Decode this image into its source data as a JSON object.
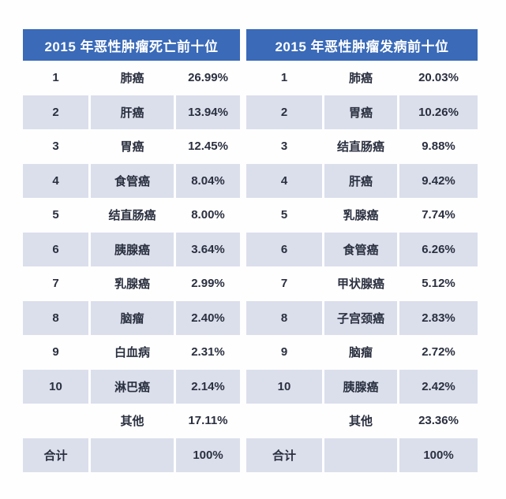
{
  "colors": {
    "header_bg": "#3a6ab8",
    "row_alt_bg": "#dbdfec",
    "text": "#2b3040"
  },
  "tables": {
    "left": {
      "title": "2015 年恶性肿瘤死亡前十位",
      "rows": [
        {
          "rank": "1",
          "name": "肺癌",
          "pct": "26.99%"
        },
        {
          "rank": "2",
          "name": "肝癌",
          "pct": "13.94%"
        },
        {
          "rank": "3",
          "name": "胃癌",
          "pct": "12.45%"
        },
        {
          "rank": "4",
          "name": "食管癌",
          "pct": "8.04%"
        },
        {
          "rank": "5",
          "name": "结直肠癌",
          "pct": "8.00%"
        },
        {
          "rank": "6",
          "name": "胰腺癌",
          "pct": "3.64%"
        },
        {
          "rank": "7",
          "name": "乳腺癌",
          "pct": "2.99%"
        },
        {
          "rank": "8",
          "name": "脑瘤",
          "pct": "2.40%"
        },
        {
          "rank": "9",
          "name": "白血病",
          "pct": "2.31%"
        },
        {
          "rank": "10",
          "name": "淋巴癌",
          "pct": "2.14%"
        },
        {
          "rank": "",
          "name": "其他",
          "pct": "17.11%"
        },
        {
          "rank": "合计",
          "name": "",
          "pct": "100%"
        }
      ]
    },
    "right": {
      "title": "2015 年恶性肿瘤发病前十位",
      "rows": [
        {
          "rank": "1",
          "name": "肺癌",
          "pct": "20.03%"
        },
        {
          "rank": "2",
          "name": "胃癌",
          "pct": "10.26%"
        },
        {
          "rank": "3",
          "name": "结直肠癌",
          "pct": "9.88%"
        },
        {
          "rank": "4",
          "name": "肝癌",
          "pct": "9.42%"
        },
        {
          "rank": "5",
          "name": "乳腺癌",
          "pct": "7.74%"
        },
        {
          "rank": "6",
          "name": "食管癌",
          "pct": "6.26%"
        },
        {
          "rank": "7",
          "name": "甲状腺癌",
          "pct": "5.12%"
        },
        {
          "rank": "8",
          "name": "子宫颈癌",
          "pct": "2.83%"
        },
        {
          "rank": "9",
          "name": "脑瘤",
          "pct": "2.72%"
        },
        {
          "rank": "10",
          "name": "胰腺癌",
          "pct": "2.42%"
        },
        {
          "rank": "",
          "name": "其他",
          "pct": "23.36%"
        },
        {
          "rank": "合计",
          "name": "",
          "pct": "100%"
        }
      ]
    }
  },
  "chart_data": [
    {
      "type": "table",
      "title": "2015 年恶性肿瘤死亡前十位",
      "rows": [
        [
          "1",
          "肺癌",
          "26.99%"
        ],
        [
          "2",
          "肝癌",
          "13.94%"
        ],
        [
          "3",
          "胃癌",
          "12.45%"
        ],
        [
          "4",
          "食管癌",
          "8.04%"
        ],
        [
          "5",
          "结直肠癌",
          "8.00%"
        ],
        [
          "6",
          "胰腺癌",
          "3.64%"
        ],
        [
          "7",
          "乳腺癌",
          "2.99%"
        ],
        [
          "8",
          "脑瘤",
          "2.40%"
        ],
        [
          "9",
          "白血病",
          "2.31%"
        ],
        [
          "10",
          "淋巴癌",
          "2.14%"
        ],
        [
          "",
          "其他",
          "17.11%"
        ],
        [
          "合计",
          "",
          "100%"
        ]
      ]
    },
    {
      "type": "table",
      "title": "2015 年恶性肿瘤发病前十位",
      "rows": [
        [
          "1",
          "肺癌",
          "20.03%"
        ],
        [
          "2",
          "胃癌",
          "10.26%"
        ],
        [
          "3",
          "结直肠癌",
          "9.88%"
        ],
        [
          "4",
          "肝癌",
          "9.42%"
        ],
        [
          "5",
          "乳腺癌",
          "7.74%"
        ],
        [
          "6",
          "食管癌",
          "6.26%"
        ],
        [
          "7",
          "甲状腺癌",
          "5.12%"
        ],
        [
          "8",
          "子宫颈癌",
          "2.83%"
        ],
        [
          "9",
          "脑瘤",
          "2.72%"
        ],
        [
          "10",
          "胰腺癌",
          "2.42%"
        ],
        [
          "",
          "其他",
          "23.36%"
        ],
        [
          "合计",
          "",
          "100%"
        ]
      ]
    }
  ]
}
